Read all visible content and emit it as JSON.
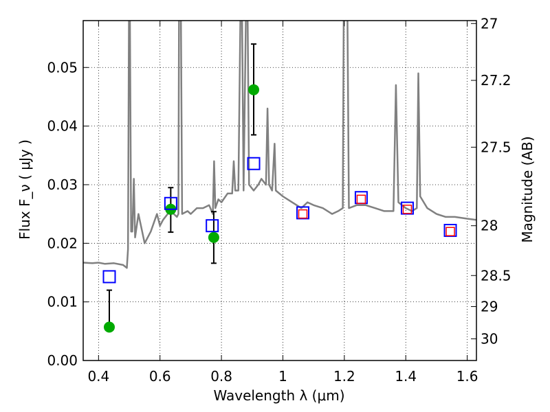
{
  "chart_data": {
    "type": "line",
    "xlabel": "Wavelength  λ (μm)",
    "ylabel": "Flux  F_ν  ( μJy )",
    "ylabel_right": "Magnitude (AB)",
    "xlim": [
      0.35,
      1.63
    ],
    "ylim": [
      0.0,
      0.058
    ],
    "grid": true,
    "x_ticks": [
      0.4,
      0.6,
      0.8,
      1.0,
      1.2,
      1.4,
      1.6
    ],
    "x_tick_labels": [
      "0.4",
      "0.6",
      "0.8",
      "1",
      "1.2",
      "1.4",
      "1.6"
    ],
    "y_ticks": [
      0.0,
      0.01,
      0.02,
      0.03,
      0.04,
      0.05
    ],
    "y_tick_labels": [
      "0.00",
      "0.01",
      "0.02",
      "0.03",
      "0.04",
      "0.05"
    ],
    "right_ticks": [
      {
        "label": "27",
        "flux": 0.0575
      },
      {
        "label": "27.2",
        "flux": 0.0478
      },
      {
        "label": "27.5",
        "flux": 0.0364
      },
      {
        "label": "28",
        "flux": 0.023
      },
      {
        "label": "28.5",
        "flux": 0.0145
      },
      {
        "label": "29",
        "flux": 0.0092
      },
      {
        "label": "30",
        "flux": 0.0037
      }
    ],
    "series": [
      {
        "type": "line",
        "color": "#808080",
        "points": [
          [
            0.35,
            0.0167
          ],
          [
            0.38,
            0.0166
          ],
          [
            0.4,
            0.0167
          ],
          [
            0.42,
            0.0165
          ],
          [
            0.45,
            0.0166
          ],
          [
            0.48,
            0.0163
          ],
          [
            0.492,
            0.0158
          ],
          [
            0.496,
            0.019
          ],
          [
            0.499,
            0.06
          ],
          [
            0.502,
            0.06
          ],
          [
            0.506,
            0.022
          ],
          [
            0.51,
            0.022
          ],
          [
            0.515,
            0.031
          ],
          [
            0.519,
            0.021
          ],
          [
            0.53,
            0.025
          ],
          [
            0.55,
            0.02
          ],
          [
            0.57,
            0.022
          ],
          [
            0.59,
            0.025
          ],
          [
            0.6,
            0.023
          ],
          [
            0.61,
            0.024
          ],
          [
            0.625,
            0.025
          ],
          [
            0.635,
            0.026
          ],
          [
            0.645,
            0.025
          ],
          [
            0.655,
            0.0245
          ],
          [
            0.66,
            0.025
          ],
          [
            0.662,
            0.06
          ],
          [
            0.668,
            0.06
          ],
          [
            0.672,
            0.025
          ],
          [
            0.69,
            0.0255
          ],
          [
            0.7,
            0.025
          ],
          [
            0.72,
            0.026
          ],
          [
            0.74,
            0.026
          ],
          [
            0.76,
            0.0265
          ],
          [
            0.772,
            0.025
          ],
          [
            0.776,
            0.034
          ],
          [
            0.78,
            0.026
          ],
          [
            0.79,
            0.0275
          ],
          [
            0.8,
            0.027
          ],
          [
            0.82,
            0.0285
          ],
          [
            0.835,
            0.0285
          ],
          [
            0.84,
            0.034
          ],
          [
            0.845,
            0.029
          ],
          [
            0.855,
            0.029
          ],
          [
            0.862,
            0.06
          ],
          [
            0.867,
            0.06
          ],
          [
            0.872,
            0.029
          ],
          [
            0.88,
            0.06
          ],
          [
            0.885,
            0.06
          ],
          [
            0.89,
            0.03
          ],
          [
            0.905,
            0.029
          ],
          [
            0.92,
            0.03
          ],
          [
            0.93,
            0.031
          ],
          [
            0.945,
            0.03
          ],
          [
            0.95,
            0.043
          ],
          [
            0.955,
            0.03
          ],
          [
            0.965,
            0.029
          ],
          [
            0.973,
            0.037
          ],
          [
            0.977,
            0.029
          ],
          [
            1.0,
            0.028
          ],
          [
            1.03,
            0.027
          ],
          [
            1.06,
            0.026
          ],
          [
            1.08,
            0.027
          ],
          [
            1.1,
            0.0265
          ],
          [
            1.13,
            0.026
          ],
          [
            1.16,
            0.025
          ],
          [
            1.18,
            0.0255
          ],
          [
            1.195,
            0.026
          ],
          [
            1.198,
            0.06
          ],
          [
            1.21,
            0.06
          ],
          [
            1.215,
            0.026
          ],
          [
            1.24,
            0.0265
          ],
          [
            1.27,
            0.0265
          ],
          [
            1.3,
            0.026
          ],
          [
            1.33,
            0.0255
          ],
          [
            1.36,
            0.0255
          ],
          [
            1.368,
            0.047
          ],
          [
            1.376,
            0.027
          ],
          [
            1.4,
            0.026
          ],
          [
            1.42,
            0.0255
          ],
          [
            1.436,
            0.026
          ],
          [
            1.441,
            0.049
          ],
          [
            1.447,
            0.028
          ],
          [
            1.47,
            0.026
          ],
          [
            1.5,
            0.025
          ],
          [
            1.53,
            0.0245
          ],
          [
            1.56,
            0.0245
          ],
          [
            1.6,
            0.0242
          ],
          [
            1.63,
            0.024
          ]
        ]
      },
      {
        "type": "scatter",
        "marker": "circle",
        "color": "#00aa00",
        "points": [
          {
            "x": 0.435,
            "y": 0.0057,
            "yerr_low": 0.0057,
            "yerr_high": 0.012
          },
          {
            "x": 0.635,
            "y": 0.0258,
            "yerr_low": 0.0219,
            "yerr_high": 0.0295
          },
          {
            "x": 0.775,
            "y": 0.021,
            "yerr_low": 0.0166,
            "yerr_high": 0.0254
          },
          {
            "x": 0.905,
            "y": 0.0462,
            "yerr_low": 0.0385,
            "yerr_high": 0.054
          }
        ]
      },
      {
        "type": "scatter",
        "marker": "square-open",
        "color": "#0000ff",
        "points": [
          {
            "x": 0.435,
            "y": 0.0143
          },
          {
            "x": 0.635,
            "y": 0.0268
          },
          {
            "x": 0.77,
            "y": 0.023
          },
          {
            "x": 0.905,
            "y": 0.0336
          },
          {
            "x": 1.065,
            "y": 0.0252
          },
          {
            "x": 1.255,
            "y": 0.0278
          },
          {
            "x": 1.405,
            "y": 0.026
          },
          {
            "x": 1.545,
            "y": 0.0222
          }
        ]
      },
      {
        "type": "scatter",
        "marker": "square-open-small",
        "color": "#ff0000",
        "points": [
          {
            "x": 1.065,
            "y": 0.025
          },
          {
            "x": 1.255,
            "y": 0.0275
          },
          {
            "x": 1.405,
            "y": 0.0258
          },
          {
            "x": 1.545,
            "y": 0.022
          }
        ]
      }
    ]
  }
}
